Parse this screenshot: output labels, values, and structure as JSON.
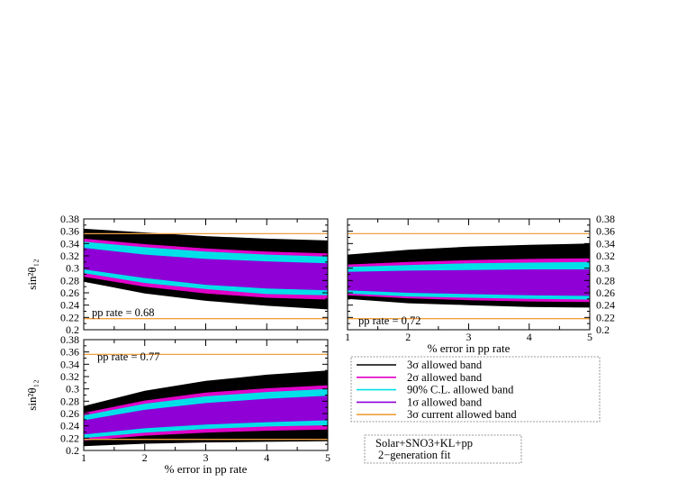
{
  "chart_data": [
    {
      "type": "area",
      "panel": "top-left",
      "annotation": "pp rate = 0.68",
      "ylabel": "sin²θ₁₂",
      "xlabel": "",
      "xlim": [
        1,
        5
      ],
      "ylim": [
        0.2,
        0.38
      ],
      "xticks": [
        "1",
        "2",
        "3",
        "4",
        "5"
      ],
      "yticks": [
        "0.2",
        "0.22",
        "0.24",
        "0.26",
        "0.28",
        "0.3",
        "0.32",
        "0.34",
        "0.36",
        "0.38"
      ],
      "yaxis_side": "left",
      "show_x_tick_labels": false,
      "current_3sigma_lines": [
        0.218,
        0.356
      ],
      "x": [
        1,
        2,
        3,
        4,
        5
      ],
      "bands": {
        "sigma3": {
          "lo": [
            0.278,
            0.259,
            0.247,
            0.239,
            0.233
          ],
          "hi": [
            0.364,
            0.358,
            0.352,
            0.348,
            0.345
          ]
        },
        "sigma2": {
          "lo": [
            0.286,
            0.27,
            0.259,
            0.252,
            0.249
          ],
          "hi": [
            0.348,
            0.339,
            0.332,
            0.327,
            0.324
          ]
        },
        "cl90": {
          "lo": [
            0.292,
            0.276,
            0.266,
            0.258,
            0.256
          ],
          "hi": [
            0.343,
            0.334,
            0.327,
            0.322,
            0.319
          ]
        },
        "sigma1": {
          "lo": [
            0.298,
            0.284,
            0.273,
            0.267,
            0.264
          ],
          "hi": [
            0.333,
            0.322,
            0.315,
            0.311,
            0.308
          ]
        }
      }
    },
    {
      "type": "area",
      "panel": "top-right",
      "annotation": "pp rate = 0.72",
      "ylabel": "",
      "xlabel": "% error in pp rate",
      "xlim": [
        1,
        5
      ],
      "ylim": [
        0.2,
        0.38
      ],
      "xticks": [
        "1",
        "2",
        "3",
        "4",
        "5"
      ],
      "yticks": [
        "0.2",
        "0.22",
        "0.24",
        "0.26",
        "0.28",
        "0.3",
        "0.32",
        "0.34",
        "0.36",
        "0.38"
      ],
      "yaxis_side": "right",
      "show_x_tick_labels": true,
      "current_3sigma_lines": [
        0.218,
        0.356
      ],
      "x": [
        1,
        2,
        3,
        4,
        5
      ],
      "bands": {
        "sigma3": {
          "lo": [
            0.25,
            0.243,
            0.24,
            0.237,
            0.236
          ],
          "hi": [
            0.322,
            0.33,
            0.335,
            0.338,
            0.34
          ]
        },
        "sigma2": {
          "lo": [
            0.256,
            0.251,
            0.248,
            0.246,
            0.245
          ],
          "hi": [
            0.306,
            0.31,
            0.313,
            0.315,
            0.316
          ]
        },
        "cl90": {
          "lo": [
            0.259,
            0.254,
            0.252,
            0.25,
            0.249
          ],
          "hi": [
            0.302,
            0.305,
            0.308,
            0.309,
            0.31
          ]
        },
        "sigma1": {
          "lo": [
            0.264,
            0.26,
            0.258,
            0.256,
            0.255
          ],
          "hi": [
            0.294,
            0.296,
            0.297,
            0.298,
            0.298
          ]
        }
      }
    },
    {
      "type": "area",
      "panel": "bottom-left",
      "annotation": "pp rate = 0.77",
      "ylabel": "sin²θ₁₂",
      "xlabel": "% error in pp rate",
      "xlim": [
        1,
        5
      ],
      "ylim": [
        0.2,
        0.38
      ],
      "xticks": [
        "1",
        "2",
        "3",
        "4",
        "5"
      ],
      "yticks": [
        "0.2",
        "0.22",
        "0.24",
        "0.26",
        "0.28",
        "0.3",
        "0.32",
        "0.34",
        "0.36",
        "0.38"
      ],
      "yaxis_side": "left",
      "show_x_tick_labels": true,
      "current_3sigma_lines": [
        0.218,
        0.356
      ],
      "x": [
        1,
        2,
        3,
        4,
        5
      ],
      "bands": {
        "sigma3": {
          "lo": [
            0.207,
            0.211,
            0.213,
            0.214,
            0.215
          ],
          "hi": [
            0.272,
            0.297,
            0.313,
            0.323,
            0.33
          ]
        },
        "sigma2": {
          "lo": [
            0.216,
            0.224,
            0.229,
            0.232,
            0.234
          ],
          "hi": [
            0.261,
            0.281,
            0.294,
            0.301,
            0.306
          ]
        },
        "cl90": {
          "lo": [
            0.22,
            0.229,
            0.235,
            0.239,
            0.241
          ],
          "hi": [
            0.257,
            0.276,
            0.288,
            0.295,
            0.3
          ]
        },
        "sigma1": {
          "lo": [
            0.226,
            0.236,
            0.242,
            0.246,
            0.249
          ],
          "hi": [
            0.249,
            0.266,
            0.277,
            0.284,
            0.289
          ]
        }
      }
    }
  ],
  "legend": {
    "items": [
      {
        "key": "sigma3",
        "label": "3σ allowed band",
        "color": "#000000"
      },
      {
        "key": "sigma2",
        "label": "2σ allowed band",
        "color": "#e000c8"
      },
      {
        "key": "cl90",
        "label": "90% C.L. allowed band",
        "color": "#00e0e8"
      },
      {
        "key": "sigma1",
        "label": "1σ allowed band",
        "color": "#8e00d6"
      },
      {
        "key": "current",
        "label": "3σ current allowed band",
        "color": "#f0a040"
      }
    ]
  },
  "info_box": {
    "line1": "Solar+SNO3+KL+pp",
    "line2": "2−generation fit"
  }
}
